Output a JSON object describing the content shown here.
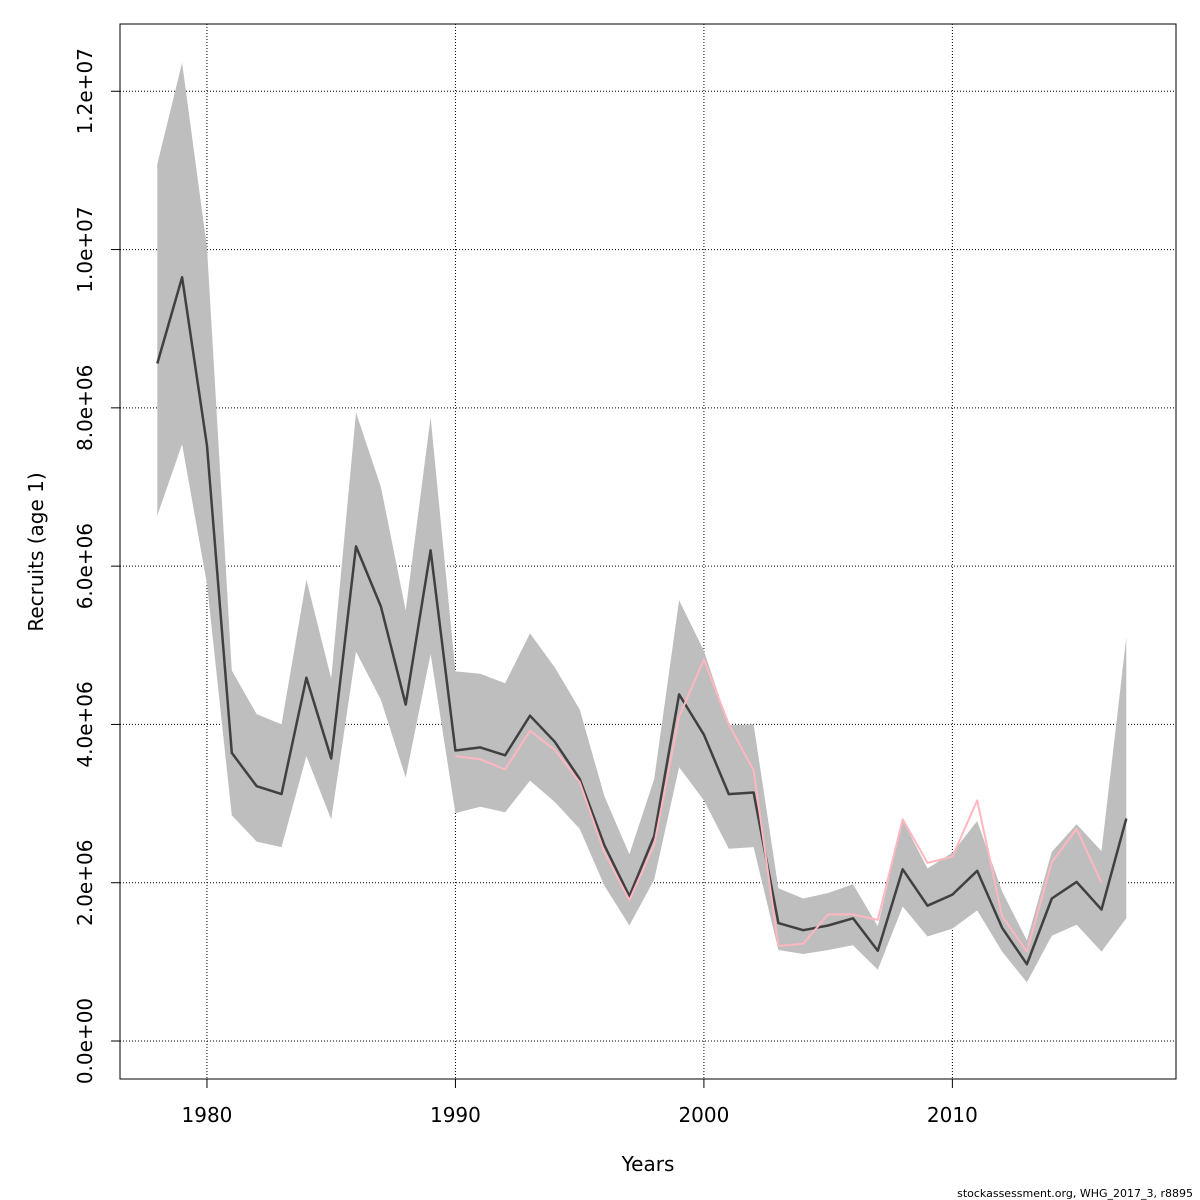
{
  "chart_data": {
    "type": "line",
    "xlabel": "Years",
    "ylabel": "Recruits (age 1)",
    "xlim": [
      1976.5,
      2019
    ],
    "ylim": [
      -480000,
      12850000
    ],
    "x_ticks": [
      1980,
      1990,
      2000,
      2010
    ],
    "x_tick_labels": [
      "1980",
      "1990",
      "2000",
      "2010"
    ],
    "y_ticks": [
      0,
      2000000,
      4000000,
      6000000,
      8000000,
      10000000,
      12000000
    ],
    "y_tick_labels": [
      "0.0e+00",
      "2.0e+06",
      "4.0e+06",
      "6.0e+06",
      "8.0e+06",
      "1.0e+07",
      "1.2e+07"
    ],
    "grid": true,
    "colors": {
      "band": "#bebebe",
      "estimate": "#404040",
      "retrospective": "#ffb6c1",
      "grid": "#000000"
    },
    "series": [
      {
        "kind": "confidence_band",
        "x": [
          1978,
          1979,
          1980,
          1981,
          1982,
          1983,
          1984,
          1985,
          1986,
          1987,
          1988,
          1989,
          1990,
          1991,
          1992,
          1993,
          1994,
          1995,
          1996,
          1997,
          1998,
          1999,
          2000,
          2001,
          2002,
          2003,
          2004,
          2005,
          2006,
          2007,
          2008,
          2009,
          2010,
          2011,
          2012,
          2013,
          2014,
          2015,
          2016,
          2017
        ],
        "lower": [
          6640000,
          7540000,
          5770000,
          2850000,
          2520000,
          2450000,
          3600000,
          2800000,
          4920000,
          4310000,
          3330000,
          4890000,
          2880000,
          2960000,
          2890000,
          3290000,
          3020000,
          2680000,
          1960000,
          1460000,
          2040000,
          3460000,
          3040000,
          2430000,
          2450000,
          1150000,
          1100000,
          1150000,
          1210000,
          900000,
          1700000,
          1320000,
          1420000,
          1650000,
          1130000,
          740000,
          1330000,
          1470000,
          1130000,
          1550000
        ],
        "upper": [
          11080000,
          12360000,
          10020000,
          4680000,
          4130000,
          4000000,
          5830000,
          4580000,
          7940000,
          7000000,
          5440000,
          7880000,
          4670000,
          4640000,
          4520000,
          5150000,
          4720000,
          4190000,
          3090000,
          2360000,
          3310000,
          5570000,
          4930000,
          3990000,
          4000000,
          1930000,
          1800000,
          1870000,
          1980000,
          1450000,
          2790000,
          2180000,
          2380000,
          2780000,
          1890000,
          1270000,
          2390000,
          2740000,
          2400000,
          5100000
        ]
      },
      {
        "kind": "estimate",
        "x": [
          1978,
          1979,
          1980,
          1981,
          1982,
          1983,
          1984,
          1985,
          1986,
          1987,
          1988,
          1989,
          1990,
          1991,
          1992,
          1993,
          1994,
          1995,
          1996,
          1997,
          1998,
          1999,
          2000,
          2001,
          2002,
          2003,
          2004,
          2005,
          2006,
          2007,
          2008,
          2009,
          2010,
          2011,
          2012,
          2013,
          2014,
          2015,
          2016,
          2017
        ],
        "values": [
          8560000,
          9650000,
          7520000,
          3640000,
          3220000,
          3120000,
          4590000,
          3570000,
          6250000,
          5490000,
          4250000,
          6200000,
          3670000,
          3710000,
          3610000,
          4110000,
          3780000,
          3310000,
          2470000,
          1830000,
          2590000,
          4380000,
          3870000,
          3120000,
          3140000,
          1490000,
          1400000,
          1460000,
          1550000,
          1140000,
          2170000,
          1710000,
          1850000,
          2150000,
          1430000,
          970000,
          1800000,
          2010000,
          1660000,
          2810000
        ]
      },
      {
        "kind": "retrospective",
        "x": [
          1990,
          1991,
          1992,
          1993,
          1994,
          1995,
          1996,
          1997,
          1998,
          1999,
          2000,
          2001,
          2002,
          2003,
          2004,
          2005,
          2006,
          2007,
          2008,
          2009,
          2010,
          2011,
          2012,
          2013,
          2014,
          2015,
          2016
        ],
        "values": [
          3600000,
          3560000,
          3430000,
          3920000,
          3680000,
          3270000,
          2380000,
          1780000,
          2480000,
          4100000,
          4820000,
          4000000,
          3420000,
          1200000,
          1230000,
          1600000,
          1600000,
          1530000,
          2800000,
          2250000,
          2330000,
          3040000,
          1580000,
          1130000,
          2260000,
          2680000,
          2000000
        ]
      }
    ]
  },
  "footer": "stockassessment.org, WHG_2017_3, r8895"
}
